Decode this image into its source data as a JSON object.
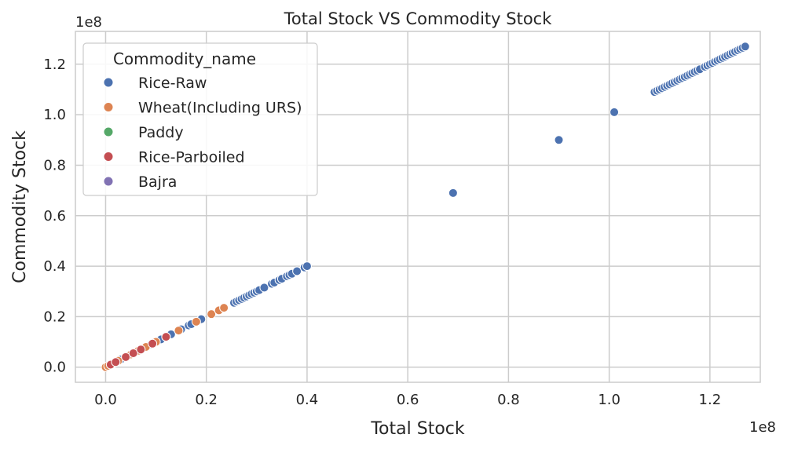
{
  "chart_data": {
    "type": "scatter",
    "title": "Total Stock VS Commodity Stock",
    "xlabel": "Total Stock",
    "ylabel": "Commodity Stock",
    "x_offset_text": "1e8",
    "y_offset_text": "1e8",
    "xlim": [
      -0.06,
      1.3
    ],
    "ylim": [
      -0.06,
      1.33
    ],
    "x_ticks": [
      0.0,
      0.2,
      0.4,
      0.6,
      0.8,
      1.0,
      1.2
    ],
    "x_tick_labels": [
      "0.0",
      "0.2",
      "0.4",
      "0.6",
      "0.8",
      "1.0",
      "1.2"
    ],
    "y_ticks": [
      0.0,
      0.2,
      0.4,
      0.6,
      0.8,
      1.0,
      1.2
    ],
    "y_tick_labels": [
      "0.0",
      "0.2",
      "0.4",
      "0.6",
      "0.8",
      "1.0",
      "1.2"
    ],
    "grid": true,
    "legend": {
      "title": "Commodity_name",
      "placement": "upper-left",
      "entries": [
        {
          "name": "Rice-Raw",
          "color": "#4c72b0"
        },
        {
          "name": "Wheat(Including URS)",
          "color": "#dd8452"
        },
        {
          "name": "Paddy",
          "color": "#55a868"
        },
        {
          "name": "Rice-Parboiled",
          "color": "#c44e52"
        },
        {
          "name": "Bajra",
          "color": "#8172b3"
        }
      ]
    },
    "series": [
      {
        "name": "Rice-Raw",
        "color": "#4c72b0",
        "points": [
          [
            0.005,
            0.005
          ],
          [
            0.01,
            0.01
          ],
          [
            0.02,
            0.02
          ],
          [
            0.03,
            0.03
          ],
          [
            0.06,
            0.06
          ],
          [
            0.07,
            0.07
          ],
          [
            0.09,
            0.09
          ],
          [
            0.11,
            0.11
          ],
          [
            0.13,
            0.13
          ],
          [
            0.15,
            0.15
          ],
          [
            0.165,
            0.165
          ],
          [
            0.17,
            0.17
          ],
          [
            0.19,
            0.19
          ],
          [
            0.255,
            0.255
          ],
          [
            0.26,
            0.26
          ],
          [
            0.265,
            0.265
          ],
          [
            0.27,
            0.27
          ],
          [
            0.275,
            0.275
          ],
          [
            0.28,
            0.28
          ],
          [
            0.285,
            0.285
          ],
          [
            0.29,
            0.29
          ],
          [
            0.295,
            0.295
          ],
          [
            0.3,
            0.3
          ],
          [
            0.305,
            0.305
          ],
          [
            0.315,
            0.315
          ],
          [
            0.33,
            0.33
          ],
          [
            0.335,
            0.335
          ],
          [
            0.345,
            0.345
          ],
          [
            0.35,
            0.35
          ],
          [
            0.36,
            0.36
          ],
          [
            0.365,
            0.365
          ],
          [
            0.37,
            0.37
          ],
          [
            0.38,
            0.38
          ],
          [
            0.395,
            0.395
          ],
          [
            0.4,
            0.4
          ],
          [
            0.69,
            0.69
          ],
          [
            0.9,
            0.9
          ],
          [
            1.01,
            1.01
          ],
          [
            1.09,
            1.09
          ],
          [
            1.095,
            1.095
          ],
          [
            1.1,
            1.1
          ],
          [
            1.105,
            1.105
          ],
          [
            1.11,
            1.11
          ],
          [
            1.115,
            1.115
          ],
          [
            1.12,
            1.12
          ],
          [
            1.125,
            1.125
          ],
          [
            1.13,
            1.13
          ],
          [
            1.135,
            1.135
          ],
          [
            1.14,
            1.14
          ],
          [
            1.145,
            1.145
          ],
          [
            1.15,
            1.15
          ],
          [
            1.155,
            1.155
          ],
          [
            1.16,
            1.16
          ],
          [
            1.165,
            1.165
          ],
          [
            1.17,
            1.17
          ],
          [
            1.175,
            1.175
          ],
          [
            1.18,
            1.18
          ],
          [
            1.19,
            1.19
          ],
          [
            1.195,
            1.195
          ],
          [
            1.2,
            1.2
          ],
          [
            1.205,
            1.205
          ],
          [
            1.21,
            1.21
          ],
          [
            1.215,
            1.215
          ],
          [
            1.22,
            1.22
          ],
          [
            1.225,
            1.225
          ],
          [
            1.23,
            1.23
          ],
          [
            1.235,
            1.235
          ],
          [
            1.24,
            1.24
          ],
          [
            1.245,
            1.245
          ],
          [
            1.25,
            1.25
          ],
          [
            1.255,
            1.255
          ],
          [
            1.26,
            1.26
          ],
          [
            1.265,
            1.265
          ],
          [
            1.27,
            1.27
          ]
        ]
      },
      {
        "name": "Wheat(Including URS)",
        "color": "#dd8452",
        "points": [
          [
            0.0,
            0.0
          ],
          [
            0.005,
            0.005
          ],
          [
            0.015,
            0.015
          ],
          [
            0.025,
            0.025
          ],
          [
            0.04,
            0.04
          ],
          [
            0.05,
            0.05
          ],
          [
            0.065,
            0.065
          ],
          [
            0.08,
            0.08
          ],
          [
            0.1,
            0.1
          ],
          [
            0.12,
            0.12
          ],
          [
            0.145,
            0.145
          ],
          [
            0.18,
            0.18
          ],
          [
            0.21,
            0.21
          ],
          [
            0.225,
            0.225
          ],
          [
            0.235,
            0.235
          ]
        ]
      },
      {
        "name": "Paddy",
        "color": "#55a868",
        "points": []
      },
      {
        "name": "Rice-Parboiled",
        "color": "#c44e52",
        "points": [
          [
            0.01,
            0.01
          ],
          [
            0.02,
            0.02
          ],
          [
            0.04,
            0.04
          ],
          [
            0.055,
            0.055
          ],
          [
            0.07,
            0.07
          ],
          [
            0.093,
            0.093
          ],
          [
            0.12,
            0.12
          ]
        ]
      },
      {
        "name": "Bajra",
        "color": "#8172b3",
        "points": []
      }
    ]
  }
}
